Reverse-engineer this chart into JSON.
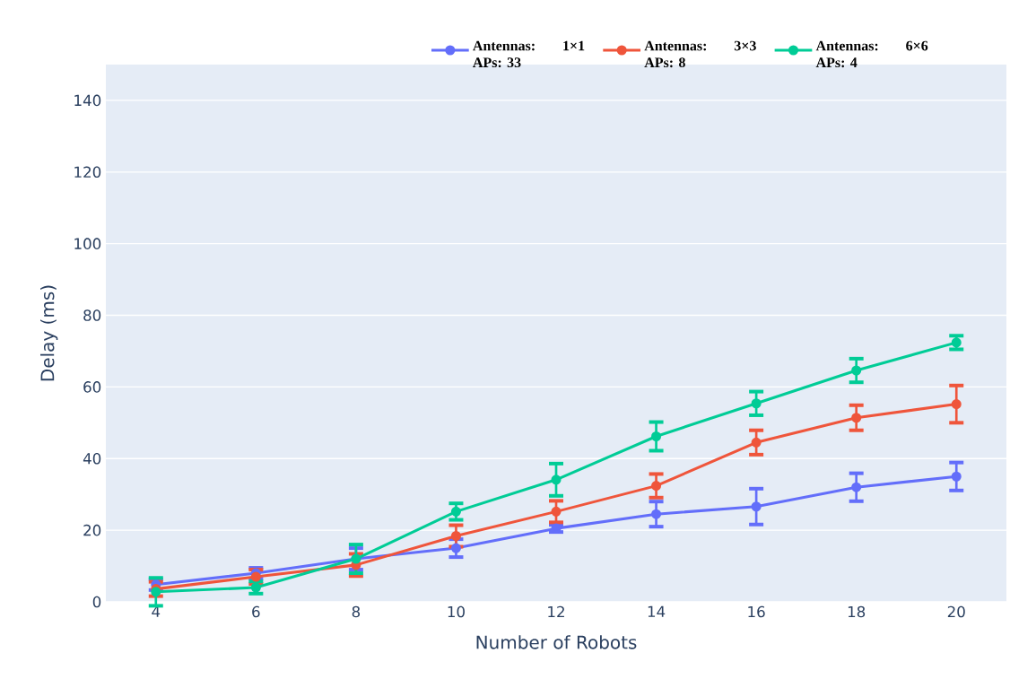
{
  "chart_data": {
    "type": "line",
    "xlabel": "Number of Robots",
    "ylabel": "Delay (ms)",
    "x": [
      4,
      6,
      8,
      10,
      12,
      14,
      16,
      18,
      20
    ],
    "series": [
      {
        "name": "Antennas: 1×1 APs: 33",
        "color": "#636efa",
        "values": [
          4.8,
          8,
          12,
          15,
          20.5,
          24.5,
          26.6,
          32,
          35
        ],
        "errors": [
          1.5,
          1.5,
          3,
          2.5,
          1,
          3.5,
          5,
          3.9,
          3.9
        ]
      },
      {
        "name": "Antennas: 3×3 APs: 8",
        "color": "#ef553b",
        "values": [
          3.6,
          7,
          10.3,
          18.4,
          25.2,
          32.4,
          44.5,
          51.4,
          55.2
        ],
        "errors": [
          2,
          2,
          3.1,
          3,
          3,
          3.3,
          3.4,
          3.5,
          5.2
        ]
      },
      {
        "name": "Antennas: 6×6 APs: 4",
        "color": "#00cc96",
        "values": [
          2.8,
          4,
          12,
          25.2,
          34.1,
          46.2,
          55.4,
          64.6,
          72.4
        ],
        "errors": [
          3.9,
          1.7,
          4,
          2.3,
          4.5,
          4,
          3.3,
          3.3,
          1.9
        ]
      }
    ],
    "xlim": [
      3,
      21
    ],
    "ylim": [
      0,
      150
    ],
    "xticks": [
      4,
      6,
      8,
      10,
      12,
      14,
      16,
      18,
      20
    ],
    "yticks": [
      0,
      20,
      40,
      60,
      80,
      100,
      120,
      140
    ],
    "grid": "y",
    "legend": "top right",
    "marker": "circle",
    "line_style": "solid"
  }
}
